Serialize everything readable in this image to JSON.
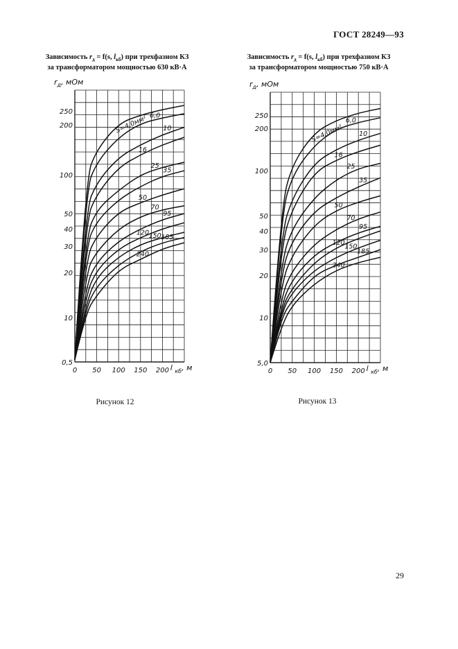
{
  "header": {
    "standard": "ГОСТ 28249—93"
  },
  "page_number": "29",
  "figures": [
    {
      "caption_line1_a": "Зависимость ",
      "caption_r": "r",
      "caption_r_sub": "д",
      "caption_line1_b": " = f(s, ",
      "caption_l": "l",
      "caption_l_sub": "кб",
      "caption_line1_c": ") при трехфазном КЗ",
      "caption_line2": "за трансформатором мощностью 630 кВ·А",
      "label": "Рисунок 12"
    },
    {
      "caption_line1_a": "Зависимость ",
      "caption_r": "r",
      "caption_r_sub": "д",
      "caption_line1_b": " = f(s, ",
      "caption_l": "l",
      "caption_l_sub": "кб",
      "caption_line1_c": ") при трехфазном КЗ",
      "caption_line2": "за трансформатором мощностью 750 кВ·А",
      "label": "Рисунок 13"
    }
  ],
  "chart_data": [
    {
      "type": "line",
      "ylabel": "r_д, мОм",
      "xlabel": "l_кб, м",
      "x_ticks": [
        "0",
        "50",
        "100",
        "150",
        "200"
      ],
      "y_ticks": [
        "0,5",
        "10",
        "20",
        "30",
        "40",
        "50",
        "100",
        "200",
        "250"
      ],
      "xlim": [
        0,
        250
      ],
      "grid": true,
      "series": [
        {
          "name": "S=4,0мм²",
          "x": [
            0,
            25,
            50,
            100,
            150,
            200,
            250
          ],
          "values": [
            1,
            95,
            150,
            205,
            235,
            255,
            270
          ]
        },
        {
          "name": "6,0",
          "x": [
            0,
            25,
            50,
            100,
            150,
            200,
            250
          ],
          "values": [
            1,
            80,
            125,
            175,
            205,
            225,
            240
          ]
        },
        {
          "name": "10",
          "x": [
            0,
            25,
            50,
            100,
            150,
            200,
            250
          ],
          "values": [
            1,
            55,
            90,
            135,
            160,
            180,
            195
          ]
        },
        {
          "name": "16",
          "x": [
            0,
            25,
            50,
            100,
            150,
            200,
            250
          ],
          "values": [
            1,
            45,
            75,
            115,
            140,
            160,
            175
          ]
        },
        {
          "name": "25",
          "x": [
            0,
            25,
            50,
            100,
            150,
            200,
            250
          ],
          "values": [
            1,
            35,
            55,
            80,
            100,
            115,
            125
          ]
        },
        {
          "name": "35",
          "x": [
            0,
            25,
            50,
            100,
            150,
            200,
            250
          ],
          "values": [
            1,
            30,
            45,
            68,
            85,
            98,
            108
          ]
        },
        {
          "name": "50",
          "x": [
            0,
            25,
            50,
            100,
            150,
            200,
            250
          ],
          "values": [
            1,
            25,
            36,
            52,
            64,
            74,
            82
          ]
        },
        {
          "name": "70",
          "x": [
            0,
            25,
            50,
            100,
            150,
            200,
            250
          ],
          "values": [
            1,
            20,
            28,
            40,
            48,
            55,
            60
          ]
        },
        {
          "name": "95",
          "x": [
            0,
            25,
            50,
            100,
            150,
            200,
            250
          ],
          "values": [
            1,
            17,
            24,
            33,
            40,
            46,
            50
          ]
        },
        {
          "name": "120",
          "x": [
            0,
            25,
            50,
            100,
            150,
            200,
            250
          ],
          "values": [
            1,
            15,
            21,
            29,
            35,
            40,
            44
          ]
        },
        {
          "name": "150",
          "x": [
            0,
            25,
            50,
            100,
            150,
            200,
            250
          ],
          "values": [
            1,
            13,
            19,
            26,
            31,
            35,
            38
          ]
        },
        {
          "name": "185",
          "x": [
            0,
            25,
            50,
            100,
            150,
            200,
            250
          ],
          "values": [
            1,
            12,
            17,
            23,
            28,
            32,
            35
          ]
        },
        {
          "name": "240",
          "x": [
            0,
            25,
            50,
            100,
            150,
            200,
            250
          ],
          "values": [
            1,
            11,
            15,
            21,
            25,
            29,
            32
          ]
        }
      ]
    },
    {
      "type": "line",
      "ylabel": "r_д, мОм",
      "xlabel": "l_кб, м",
      "x_ticks": [
        "0",
        "50",
        "100",
        "150",
        "200"
      ],
      "y_ticks": [
        "5,0",
        "10",
        "20",
        "30",
        "40",
        "50",
        "100",
        "200",
        "250"
      ],
      "xlim": [
        0,
        250
      ],
      "grid": true,
      "series": [
        {
          "name": "S=4,0мм²",
          "x": [
            0,
            25,
            50,
            100,
            150,
            200,
            250
          ],
          "values": [
            5,
            60,
            115,
            190,
            230,
            258,
            275
          ]
        },
        {
          "name": "6,0",
          "x": [
            0,
            25,
            50,
            100,
            150,
            200,
            250
          ],
          "values": [
            5,
            50,
            95,
            160,
            198,
            222,
            240
          ]
        },
        {
          "name": "10",
          "x": [
            0,
            25,
            50,
            100,
            150,
            200,
            250
          ],
          "values": [
            5,
            38,
            70,
            118,
            150,
            172,
            188
          ]
        },
        {
          "name": "16",
          "x": [
            0,
            25,
            50,
            100,
            150,
            200,
            250
          ],
          "values": [
            5,
            32,
            58,
            98,
            125,
            145,
            160
          ]
        },
        {
          "name": "25",
          "x": [
            0,
            25,
            50,
            100,
            150,
            200,
            250
          ],
          "values": [
            5,
            25,
            42,
            70,
            90,
            105,
            117
          ]
        },
        {
          "name": "35",
          "x": [
            0,
            25,
            50,
            100,
            150,
            200,
            250
          ],
          "values": [
            5,
            21,
            35,
            55,
            70,
            82,
            92
          ]
        },
        {
          "name": "50",
          "x": [
            0,
            25,
            50,
            100,
            150,
            200,
            250
          ],
          "values": [
            5,
            18,
            28,
            44,
            56,
            65,
            72
          ]
        },
        {
          "name": "70",
          "x": [
            0,
            25,
            50,
            100,
            150,
            200,
            250
          ],
          "values": [
            5,
            15,
            22,
            33,
            41,
            48,
            54
          ]
        },
        {
          "name": "95",
          "x": [
            0,
            25,
            50,
            100,
            150,
            200,
            250
          ],
          "values": [
            5,
            13,
            19,
            28,
            34,
            39,
            43
          ]
        },
        {
          "name": "120",
          "x": [
            0,
            25,
            50,
            100,
            150,
            200,
            250
          ],
          "values": [
            5,
            12,
            17,
            25,
            31,
            36,
            40
          ]
        },
        {
          "name": "150",
          "x": [
            0,
            25,
            50,
            100,
            150,
            200,
            250
          ],
          "values": [
            5,
            11,
            16,
            22,
            27,
            31,
            35
          ]
        },
        {
          "name": "185",
          "x": [
            0,
            25,
            50,
            100,
            150,
            200,
            250
          ],
          "values": [
            5,
            10,
            14,
            20,
            24,
            27,
            30
          ]
        },
        {
          "name": "240",
          "x": [
            0,
            25,
            50,
            100,
            150,
            200,
            250
          ],
          "values": [
            5,
            9,
            13,
            18,
            22,
            25,
            27
          ]
        }
      ]
    }
  ]
}
